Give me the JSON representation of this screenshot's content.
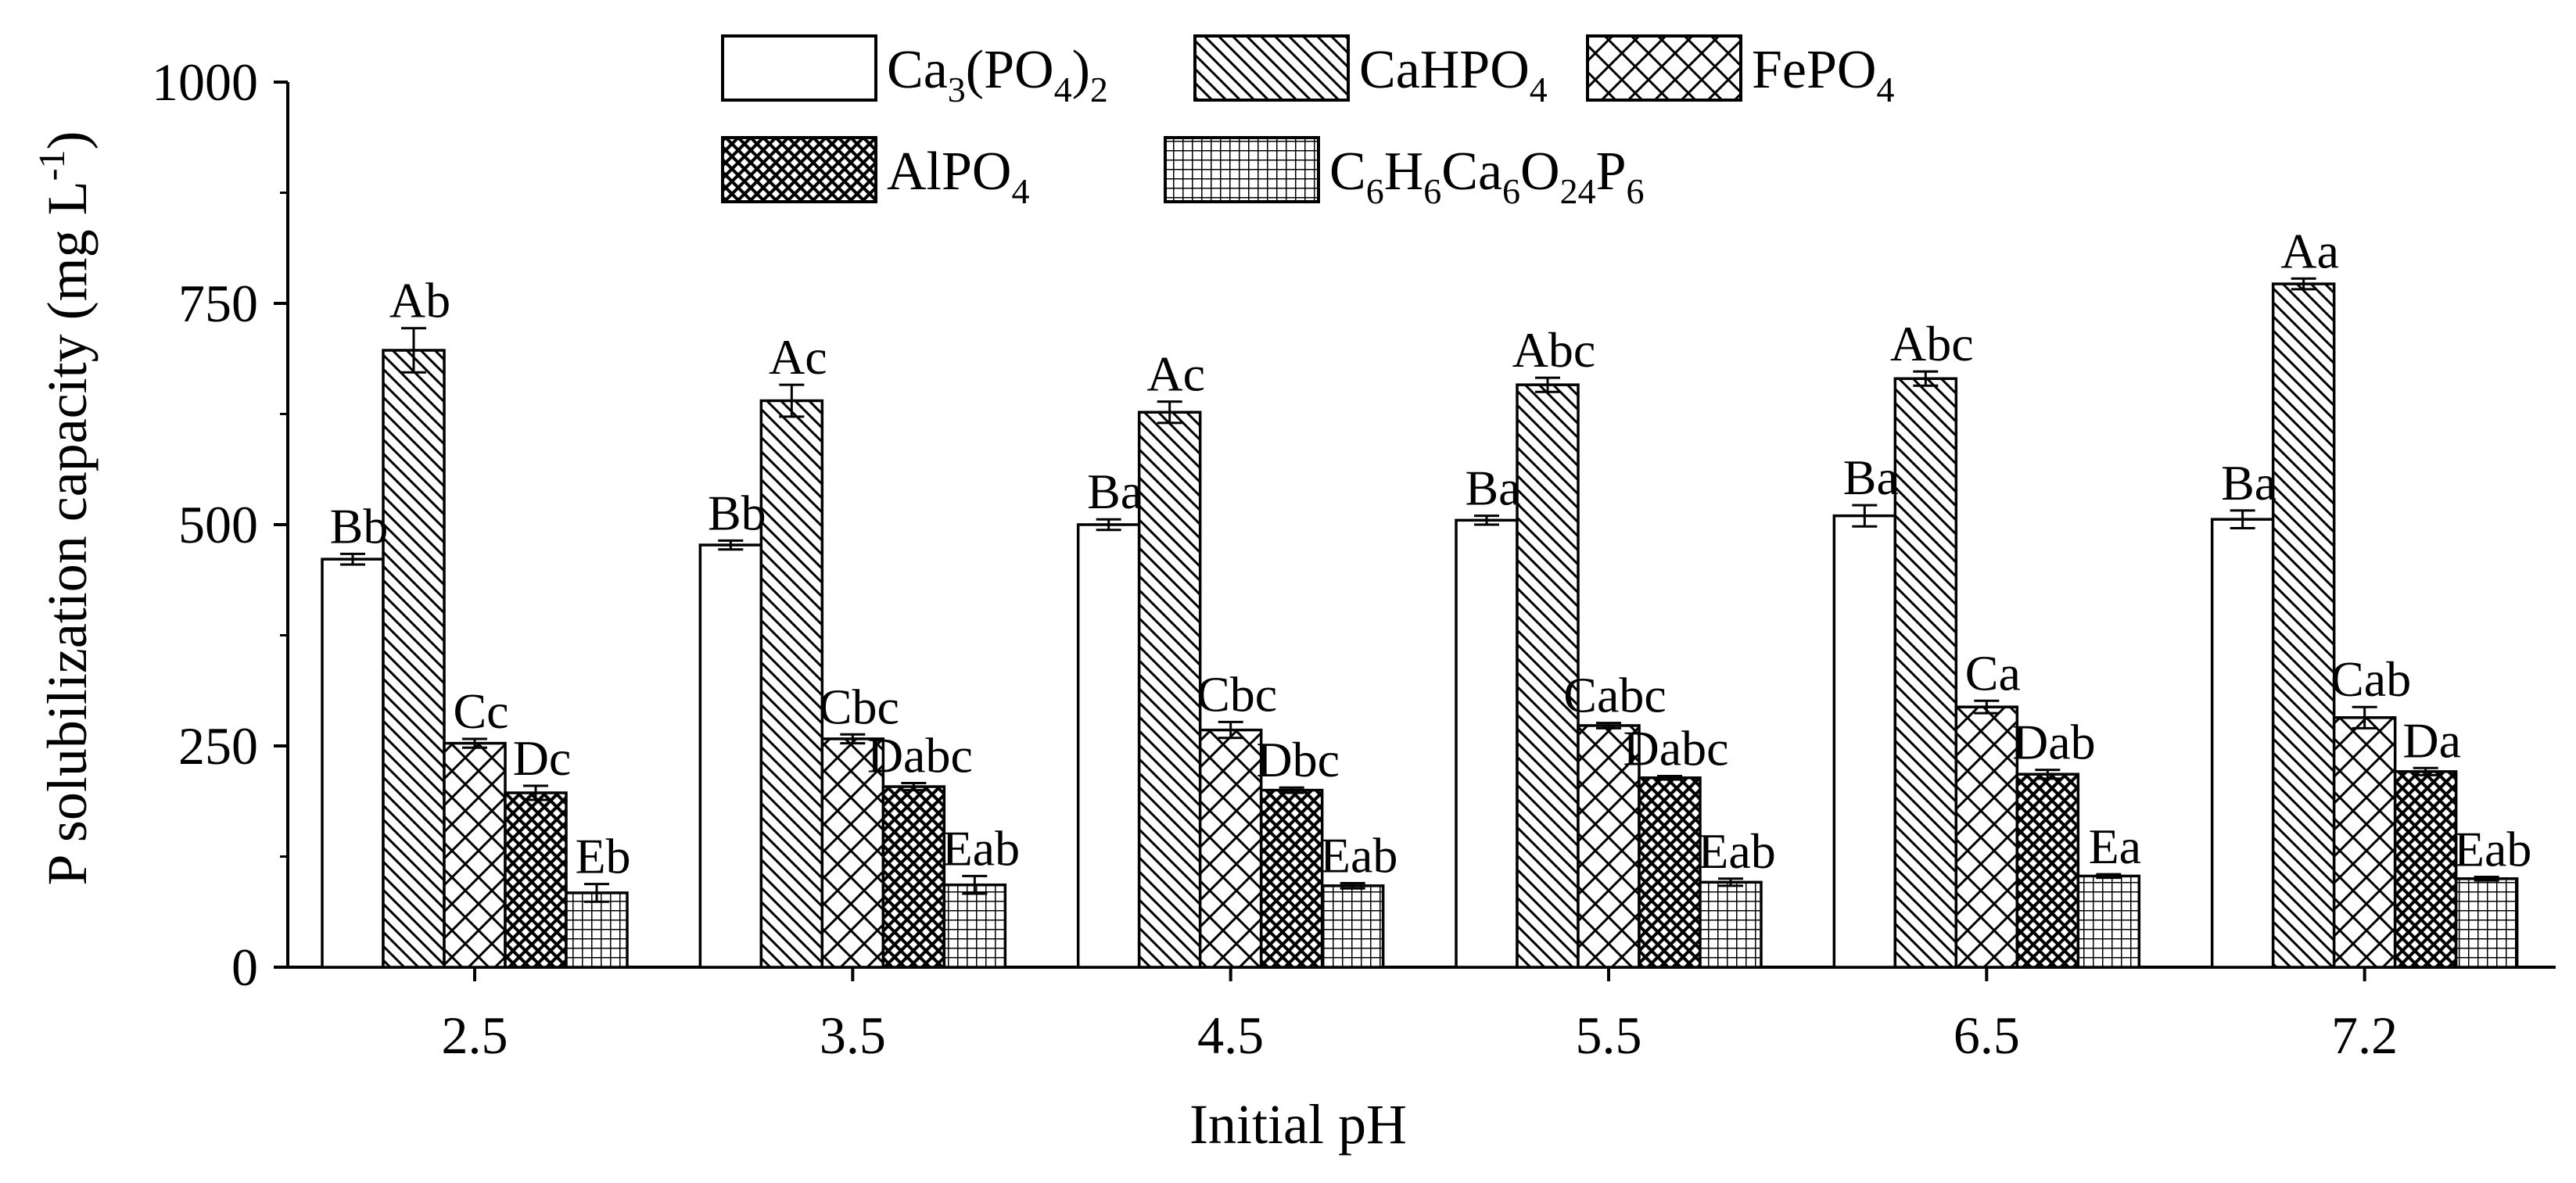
{
  "chart_data": {
    "type": "bar",
    "title": "",
    "xlabel": "Initial pH",
    "ylabel": "P solubilization capacity (mg L",
    "ylabel_superscript": "-1",
    "ylabel_close": ")",
    "ylim": [
      0,
      1000
    ],
    "yticks": [
      "0",
      "250",
      "500",
      "750",
      "1000"
    ],
    "categories": [
      "2.5",
      "3.5",
      "4.5",
      "5.5",
      "6.5",
      "7.2"
    ],
    "legend_position": "top",
    "series": [
      {
        "name": "Ca3(PO4)2",
        "legend_parts": [
          [
            "Ca",
            false
          ],
          [
            "3",
            true
          ],
          [
            "(PO",
            false
          ],
          [
            "4",
            true
          ],
          [
            ")",
            false
          ],
          [
            "2",
            true
          ]
        ],
        "pattern": "white",
        "values": [
          461,
          477,
          500,
          505,
          510,
          506
        ],
        "errors": [
          6,
          5,
          6,
          5,
          12,
          10
        ],
        "labels": [
          "Bb",
          "Bb",
          "Ba",
          "Ba",
          "Ba",
          "Ba"
        ]
      },
      {
        "name": "CaHPO4",
        "legend_parts": [
          [
            "CaHPO",
            false
          ],
          [
            "4",
            true
          ]
        ],
        "pattern": "diagonal",
        "values": [
          697,
          640,
          627,
          658,
          665,
          772
        ],
        "errors": [
          25,
          18,
          12,
          8,
          8,
          6
        ],
        "labels": [
          "Ab",
          "Ac",
          "Ac",
          "Abc",
          "Abc",
          "Aa"
        ]
      },
      {
        "name": "FePO4",
        "legend_parts": [
          [
            "FePO",
            false
          ],
          [
            "4",
            true
          ]
        ],
        "pattern": "crosshatch",
        "values": [
          253,
          258,
          268,
          273,
          294,
          282
        ],
        "errors": [
          5,
          5,
          9,
          3,
          7,
          12
        ],
        "labels": [
          "Cc",
          "Cbc",
          "Cbc",
          "Cabc",
          "Ca",
          "Cab"
        ]
      },
      {
        "name": "AlPO4",
        "legend_parts": [
          [
            "AlPO",
            false
          ],
          [
            "4",
            true
          ]
        ],
        "pattern": "dense-crosshatch",
        "values": [
          197,
          204,
          200,
          214,
          218,
          221
        ],
        "errors": [
          8,
          4,
          3,
          2,
          5,
          4
        ],
        "labels": [
          "Dc",
          "Dabc",
          "Dbc",
          "Dabc",
          "Dab",
          "Da"
        ]
      },
      {
        "name": "C6H6Ca6O24P6",
        "legend_parts": [
          [
            "C",
            false
          ],
          [
            "6",
            true
          ],
          [
            "H",
            false
          ],
          [
            "6",
            true
          ],
          [
            "Ca",
            false
          ],
          [
            "6",
            true
          ],
          [
            "O",
            false
          ],
          [
            "24",
            true
          ],
          [
            "P",
            false
          ],
          [
            "6",
            true
          ]
        ],
        "pattern": "grid",
        "values": [
          84,
          93,
          92,
          96,
          103,
          100
        ],
        "errors": [
          10,
          10,
          3,
          4,
          2,
          2
        ],
        "labels": [
          "Eb",
          "Eab",
          "Eab",
          "Eab",
          "Ea",
          "Eab"
        ]
      }
    ]
  }
}
